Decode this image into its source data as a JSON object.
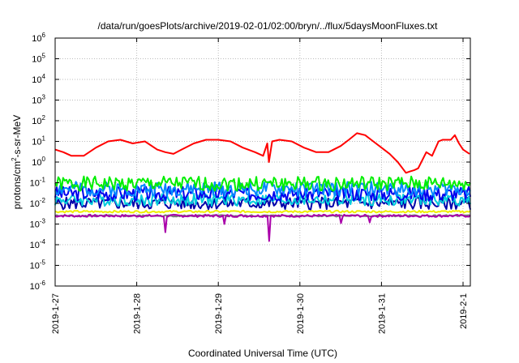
{
  "chart_data": {
    "type": "line",
    "title": "/data/run/goesPlots/archive/2019-02-01/02:00/bryn/../flux/5daysMoonFluxes.txt",
    "xlabel": "Coordinated Universal Time (UTC)",
    "ylabel_parts": [
      "protons/cm",
      "2",
      "-s-sr-MeV"
    ],
    "x_range": [
      "2019-01-27",
      "2019-02-01 02:00"
    ],
    "y_log_scale": true,
    "ylim": [
      1e-06,
      1000000.0
    ],
    "grid": true,
    "legend": "none",
    "x_ticks": [
      {
        "label": "2019-1-27",
        "day": 0
      },
      {
        "label": "2019-1-28",
        "day": 1
      },
      {
        "label": "2019-1-29",
        "day": 2
      },
      {
        "label": "2019-1-30",
        "day": 3
      },
      {
        "label": "2019-1-31",
        "day": 4
      },
      {
        "label": "2019-2-1",
        "day": 5
      }
    ],
    "y_ticks": [
      {
        "base": "10",
        "exp": "6",
        "value": 1000000.0
      },
      {
        "base": "10",
        "exp": "5",
        "value": 100000.0
      },
      {
        "base": "10",
        "exp": "4",
        "value": 10000.0
      },
      {
        "base": "10",
        "exp": "3",
        "value": 1000.0
      },
      {
        "base": "10",
        "exp": "2",
        "value": 100.0
      },
      {
        "base": "10",
        "exp": "1",
        "value": 10.0
      },
      {
        "base": "10",
        "exp": "0",
        "value": 1.0
      },
      {
        "base": "10",
        "exp": "-1",
        "value": 0.1
      },
      {
        "base": "10",
        "exp": "-2",
        "value": 0.01
      },
      {
        "base": "10",
        "exp": "-3",
        "value": 0.001
      },
      {
        "base": "10",
        "exp": "-4",
        "value": 0.0001
      },
      {
        "base": "10",
        "exp": "-5",
        "value": 1e-05
      },
      {
        "base": "10",
        "exp": "-6",
        "value": 1e-06
      }
    ],
    "series": [
      {
        "color": "#ff0000",
        "x_days": [
          0,
          0.1,
          0.2,
          0.35,
          0.5,
          0.65,
          0.8,
          0.95,
          1.1,
          1.25,
          1.35,
          1.45,
          1.55,
          1.7,
          1.85,
          2.0,
          2.15,
          2.3,
          2.45,
          2.55,
          2.6,
          2.62,
          2.66,
          2.75,
          2.9,
          3.05,
          3.2,
          3.35,
          3.5,
          3.6,
          3.7,
          3.8,
          3.9,
          4.0,
          4.1,
          4.2,
          4.3,
          4.35,
          4.4,
          4.45,
          4.55,
          4.62,
          4.7,
          4.75,
          4.85,
          4.9,
          4.95,
          5.0,
          5.08
        ],
        "values": [
          4,
          3,
          2,
          2,
          5,
          10,
          12,
          8,
          10,
          4,
          3,
          2.5,
          4,
          8,
          12,
          12,
          10,
          5,
          3,
          2,
          8,
          1,
          10,
          12,
          10,
          5,
          3,
          3,
          6,
          12,
          25,
          20,
          10,
          5,
          2.5,
          1,
          0.3,
          0.35,
          0.4,
          0.5,
          3,
          2,
          10,
          12,
          12,
          20,
          8,
          4,
          2.5
        ]
      },
      {
        "color": "#00ee00",
        "base": 0.09,
        "amp": 0.35,
        "seed": 1
      },
      {
        "color": "#0088ff",
        "base": 0.05,
        "amp": 0.35,
        "seed": 2
      },
      {
        "color": "#0000ee",
        "base": 0.03,
        "amp": 0.35,
        "seed": 3
      },
      {
        "color": "#00ccdd",
        "base": 0.015,
        "amp": 0.3,
        "seed": 4
      },
      {
        "color": "#0000aa",
        "base": 0.01,
        "amp": 0.3,
        "seed": 5
      },
      {
        "color": "#eeee00",
        "base": 0.004,
        "amp": 0.05,
        "seed": 6
      },
      {
        "color": "#aa00aa",
        "base": 0.0025,
        "amp": 0.06,
        "seed": 7,
        "dips": [
          {
            "x_day": 1.35,
            "value": 0.0004
          },
          {
            "x_day": 2.08,
            "value": 0.001
          },
          {
            "x_day": 2.62,
            "value": 0.00015
          },
          {
            "x_day": 3.5,
            "value": 0.0011
          },
          {
            "x_day": 3.85,
            "value": 0.0012
          }
        ]
      },
      {
        "color": "#777777",
        "base": 0.0025,
        "amp": 0.04,
        "seed": 8
      }
    ]
  }
}
